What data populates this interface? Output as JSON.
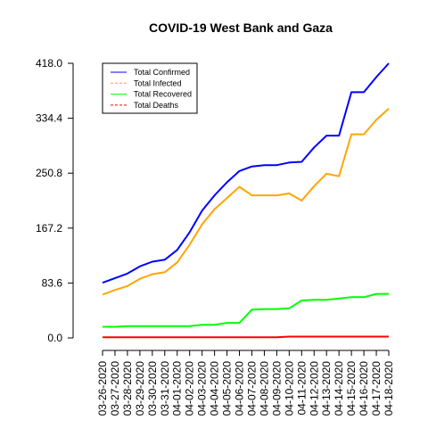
{
  "chart_data": {
    "type": "line",
    "title": "COVID-19 West Bank and Gaza",
    "xlabel": "",
    "ylabel": "",
    "ylim": [
      0,
      418
    ],
    "yticks": [
      "0.0",
      "83.6",
      "167.2",
      "250.8",
      "334.4",
      "418.0"
    ],
    "grid": false,
    "legend_position": "top-left",
    "categories": [
      "03-26-2020",
      "03-27-2020",
      "03-28-2020",
      "03-29-2020",
      "03-30-2020",
      "03-31-2020",
      "04-01-2020",
      "04-02-2020",
      "04-03-2020",
      "04-04-2020",
      "04-05-2020",
      "04-06-2020",
      "04-07-2020",
      "04-08-2020",
      "04-09-2020",
      "04-10-2020",
      "04-11-2020",
      "04-12-2020",
      "04-13-2020",
      "04-14-2020",
      "04-15-2020",
      "04-16-2020",
      "04-17-2020",
      "04-18-2020"
    ],
    "series": [
      {
        "name": "Total Confirmed",
        "color": "#0000ff",
        "dash": "solid",
        "values": [
          84,
          91,
          98,
          109,
          116,
          119,
          134,
          161,
          194,
          217,
          237,
          254,
          261,
          263,
          263,
          267,
          268,
          290,
          308,
          308,
          374,
          374,
          397,
          418
        ]
      },
      {
        "name": "Total Infected",
        "color": "#ffa500",
        "dash": "dashed",
        "values": [
          66,
          73,
          79,
          90,
          97,
          100,
          115,
          142,
          173,
          196,
          213,
          230,
          217,
          217,
          217,
          220,
          209,
          231,
          250,
          246,
          310,
          310,
          332,
          349
        ]
      },
      {
        "name": "Total Recovered",
        "color": "#00ff00",
        "dash": "solid",
        "values": [
          17,
          17,
          18,
          18,
          18,
          18,
          18,
          18,
          20,
          20,
          23,
          23,
          43,
          44,
          44,
          45,
          57,
          58,
          58,
          60,
          62,
          62,
          67,
          67
        ]
      },
      {
        "name": "Total Deaths",
        "color": "#ff0000",
        "dash": "dashed",
        "values": [
          1,
          1,
          1,
          1,
          1,
          1,
          1,
          1,
          1,
          1,
          1,
          1,
          1,
          1,
          1,
          2,
          2,
          2,
          2,
          2,
          2,
          2,
          2,
          2
        ]
      }
    ]
  }
}
